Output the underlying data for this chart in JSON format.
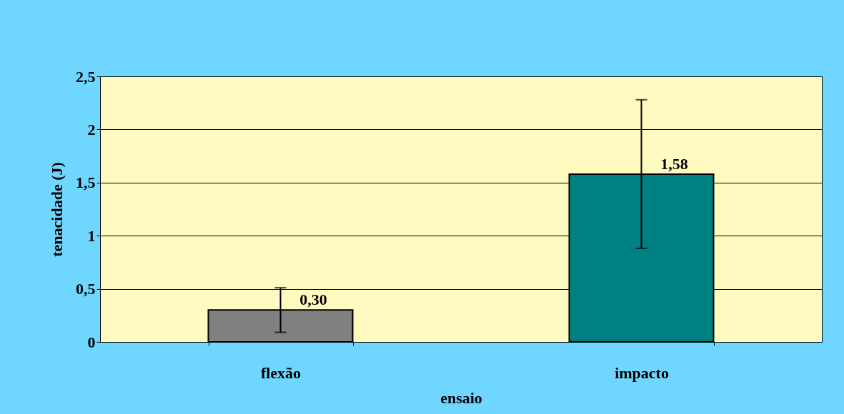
{
  "chart_data": {
    "type": "bar",
    "xlabel": "ensaio",
    "ylabel": "tenacidade (J)",
    "categories": [
      "flexão",
      "impacto"
    ],
    "values": [
      0.3,
      1.58
    ],
    "colors": [
      "#808080",
      "#008080"
    ],
    "errors": [
      0.21,
      0.7
    ],
    "value_labels": [
      "0,30",
      "1,58"
    ],
    "ylim": [
      0,
      2.5
    ],
    "yticks": [
      0,
      {
        "value": 0.5,
        "label": "0,5"
      },
      1,
      {
        "value": 1.5,
        "label": "1,5"
      },
      2,
      {
        "value": 2.5,
        "label": "2,5"
      }
    ],
    "grid": "y"
  }
}
